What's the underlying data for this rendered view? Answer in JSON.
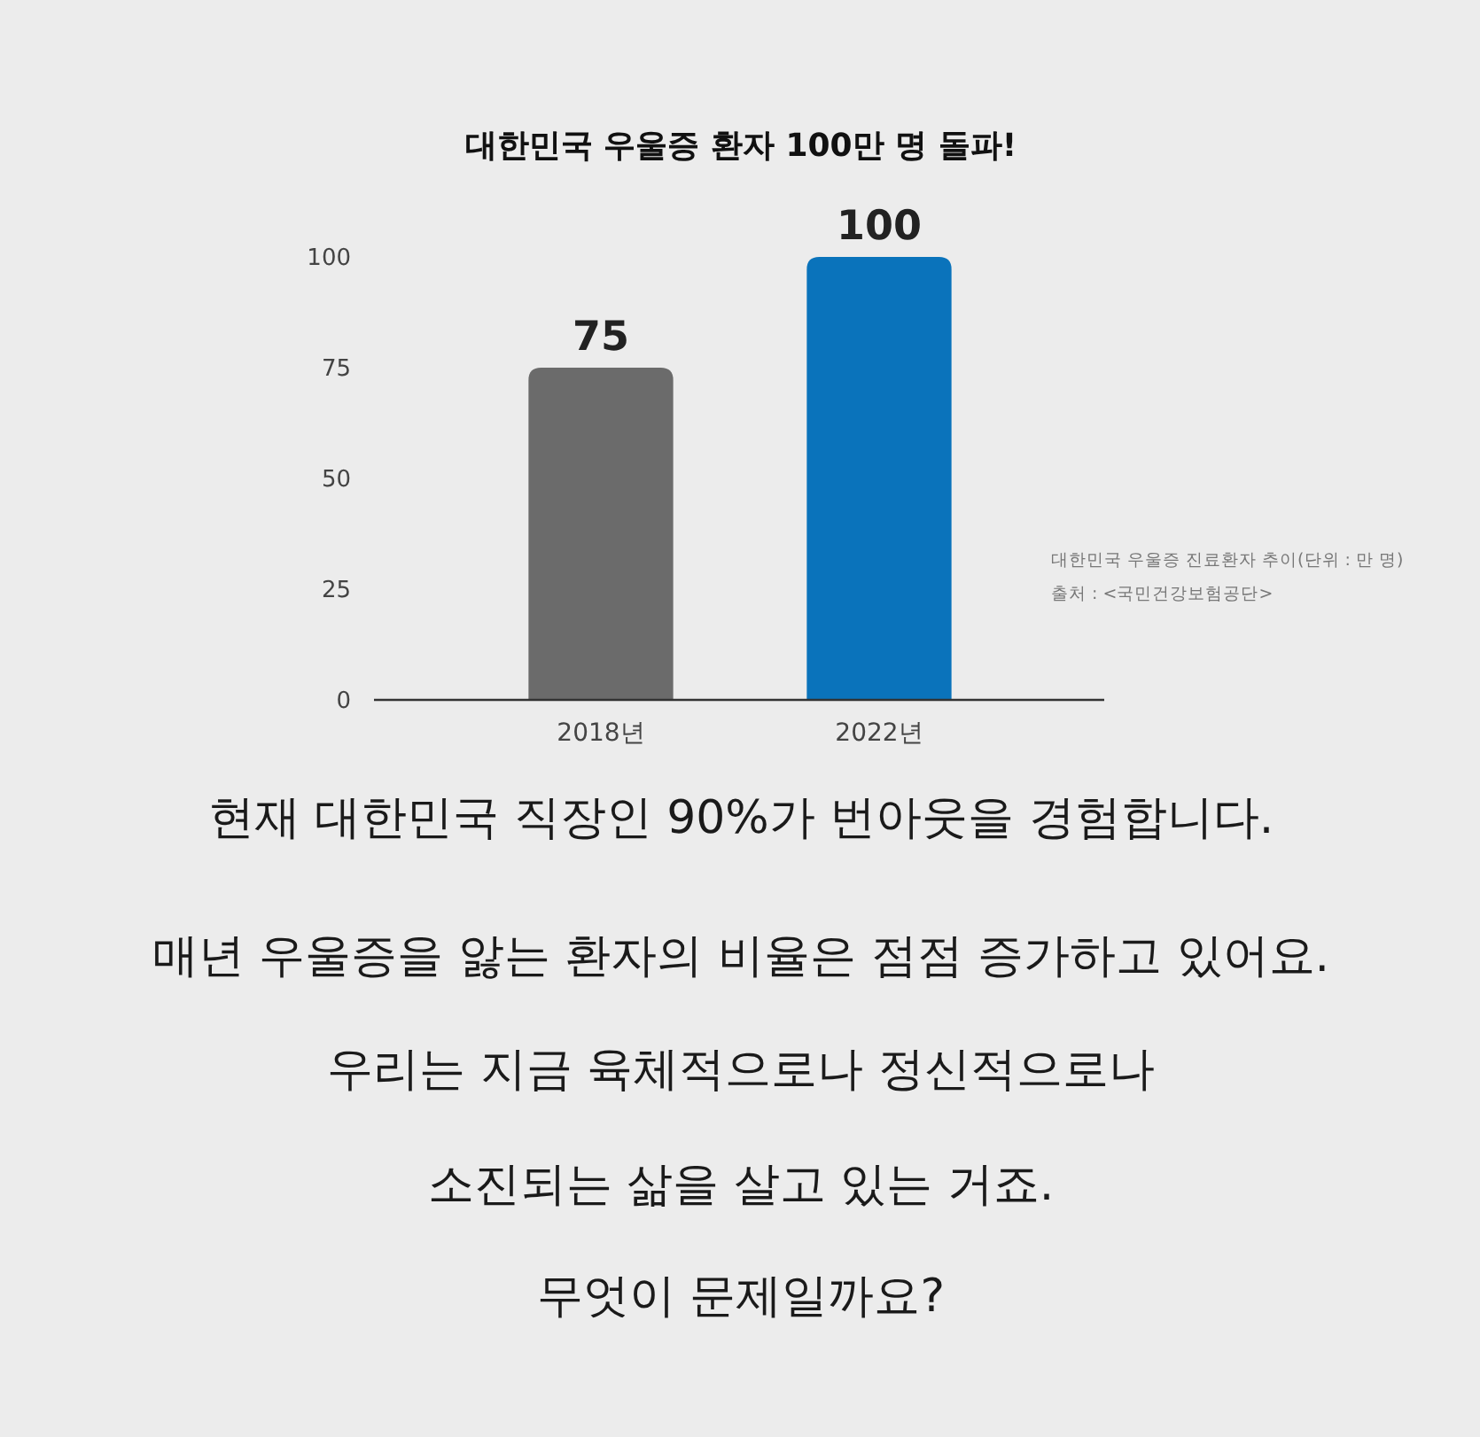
{
  "chart_data": {
    "type": "bar",
    "title": "대한민국 우울증 환자 100만 명 돌파!",
    "categories": [
      "2018년",
      "2022년"
    ],
    "values": [
      75,
      100
    ],
    "colors": [
      "#6b6b6b",
      "#0a73bb"
    ],
    "ylim": [
      0,
      100
    ],
    "yticks": [
      0,
      25,
      50,
      75,
      100
    ],
    "data_labels": true,
    "annotations": [
      "대한민국 우울증 진료환자 추이(단위 : 만 명)",
      "출처 : <국민건강보험공단>",
      "현재 대한민국 직장인 90%가 번아웃을 경험합니다.",
      "매년 우울증을 앓는 환자의 비율은 점점 증가하고 있어요.",
      "우리는 지금 육체적으로나 정신적으로나",
      "소진되는 삶을 살고 있는 거죠.",
      "무엇이 문제일까요?"
    ]
  }
}
